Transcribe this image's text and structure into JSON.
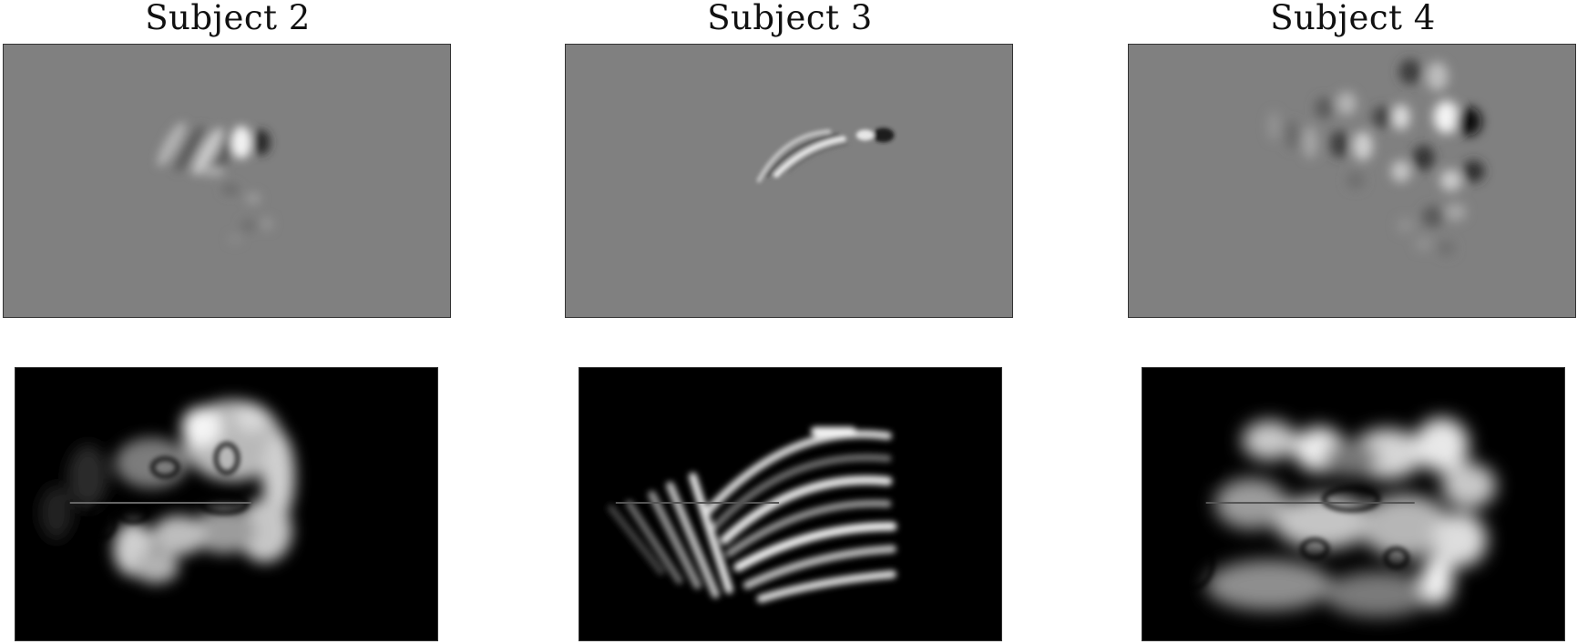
{
  "figure": {
    "columns": [
      {
        "title": "Subject 2"
      },
      {
        "title": "Subject 3"
      },
      {
        "title": "Subject 4"
      }
    ]
  },
  "colors": {
    "background": "#ffffff",
    "top_panel_bg": "#808080",
    "bottom_panel_bg": "#000000",
    "border": "#333333"
  }
}
